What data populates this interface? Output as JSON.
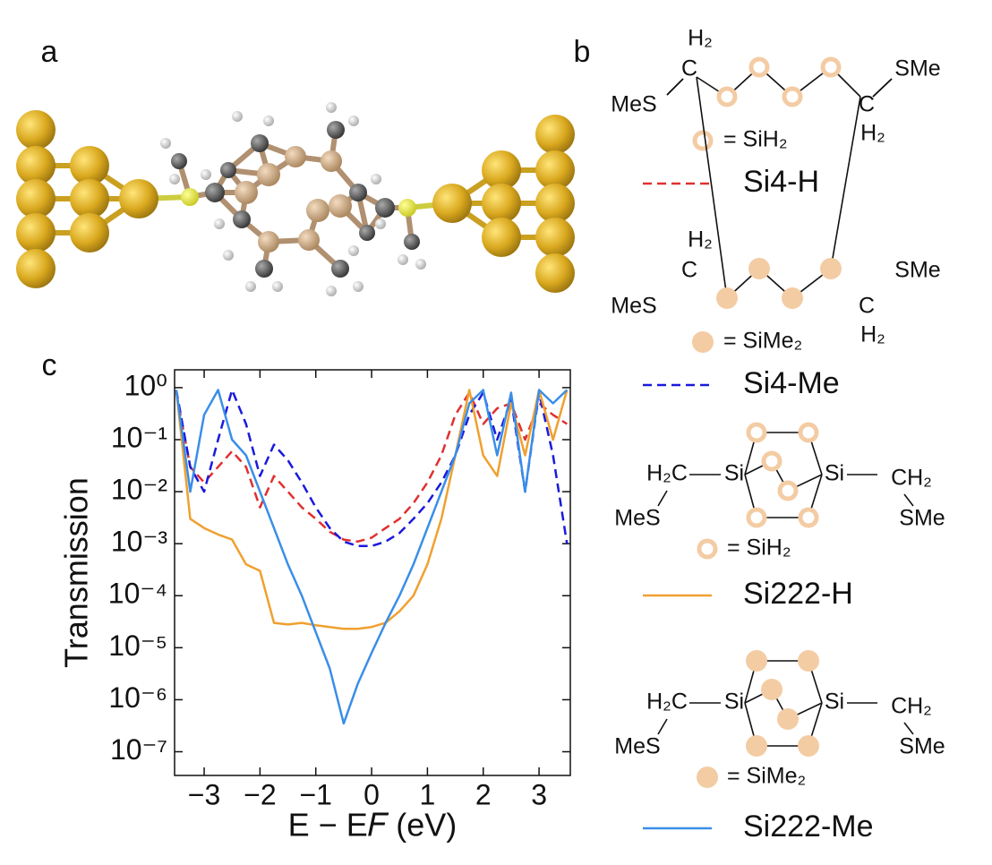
{
  "panel_labels": [
    "a",
    "b",
    "c"
  ],
  "structures": [
    {
      "labels": [
        "H₂",
        "C",
        "MeS",
        "C",
        "SMe",
        "H₂"
      ],
      "key": "= SiH₂"
    },
    {
      "labels": [
        "H₂",
        "C",
        "MeS",
        "C",
        "SMe",
        "H₂"
      ],
      "key": "= SiMe₂"
    },
    {
      "labels": [
        "H₂C",
        "Si",
        "Si",
        "CH₂",
        "MeS",
        "SMe"
      ],
      "key": "= SiH₂"
    },
    {
      "labels": [
        "H₂C",
        "Si",
        "Si",
        "CH₂",
        "MeS",
        "SMe"
      ],
      "key": "= SiMe₂"
    }
  ],
  "chart_data": {
    "type": "line",
    "xlabel": "E − E𝐹 (eV)",
    "ylabel": "Transmission",
    "yscale": "log",
    "xlim": [
      -3.53,
      3.56
    ],
    "ylim": [
      3.5e-08,
      2.2
    ],
    "xticks": [
      {
        "value": -3,
        "label": "−3"
      },
      {
        "value": -2,
        "label": "−2"
      },
      {
        "value": -1,
        "label": "−1"
      },
      0,
      1,
      2,
      3
    ],
    "yticks": [
      {
        "value": 1,
        "label": "10⁰"
      },
      {
        "value": 0.1,
        "label": "10⁻¹"
      },
      {
        "value": 0.01,
        "label": "10⁻²"
      },
      {
        "value": 0.001,
        "label": "10⁻³"
      },
      {
        "value": 0.0001,
        "label": "10⁻⁴"
      },
      {
        "value": 1e-05,
        "label": "10⁻⁵"
      },
      {
        "value": 1e-06,
        "label": "10⁻⁶"
      },
      {
        "value": 1e-07,
        "label": "10⁻⁷"
      }
    ],
    "x": [
      -3.5,
      -3.25,
      -3,
      -2.75,
      -2.5,
      -2.25,
      -2,
      -1.75,
      -1.5,
      -1.25,
      -1,
      -0.75,
      -0.5,
      -0.25,
      0,
      0.25,
      0.5,
      0.75,
      1,
      1.25,
      1.5,
      1.75,
      2,
      2.25,
      2.5,
      2.75,
      3,
      3.25,
      3.5
    ],
    "series": [
      {
        "name": "Si4-H",
        "color": "#e03030",
        "linestyle": "dashed",
        "values": [
          0.8,
          0.03,
          0.015,
          0.03,
          0.06,
          0.03,
          0.005,
          0.02,
          0.01,
          0.005,
          0.003,
          0.0017,
          0.0012,
          0.0011,
          0.0013,
          0.002,
          0.003,
          0.006,
          0.015,
          0.05,
          0.3,
          0.8,
          0.2,
          0.4,
          0.5,
          0.1,
          0.5,
          0.3,
          0.2
        ]
      },
      {
        "name": "Si4-Me",
        "color": "#1a1adc",
        "linestyle": "dashed",
        "values": [
          0.9,
          0.03,
          0.01,
          0.1,
          0.9,
          0.2,
          0.02,
          0.08,
          0.04,
          0.015,
          0.005,
          0.002,
          0.0011,
          0.0009,
          0.0009,
          0.0011,
          0.0016,
          0.003,
          0.006,
          0.015,
          0.05,
          0.3,
          0.8,
          0.1,
          0.6,
          0.01,
          0.8,
          0.05,
          0.001
        ]
      },
      {
        "name": "Si222-H",
        "color": "#f0a030",
        "linestyle": "solid",
        "values": [
          0.9,
          0.003,
          0.002,
          0.0015,
          0.0012,
          0.0004,
          0.0003,
          3e-05,
          2.8e-05,
          3e-05,
          2.7e-05,
          2.5e-05,
          2.3e-05,
          2.3e-05,
          2.5e-05,
          3e-05,
          5e-05,
          0.0001,
          0.0004,
          0.003,
          0.05,
          0.9,
          0.05,
          0.02,
          0.5,
          0.05,
          0.9,
          0.1,
          0.9
        ]
      },
      {
        "name": "Si222-Me",
        "color": "#3a8ee8",
        "linestyle": "solid",
        "values": [
          0.9,
          0.01,
          0.3,
          0.9,
          0.1,
          0.05,
          0.01,
          0.002,
          0.0004,
          0.0001,
          2e-05,
          4e-06,
          3.5e-07,
          2e-06,
          8e-06,
          3e-05,
          0.0001,
          0.0004,
          0.002,
          0.01,
          0.05,
          0.5,
          0.9,
          0.05,
          0.8,
          0.01,
          0.9,
          0.5,
          0.9
        ]
      }
    ]
  }
}
